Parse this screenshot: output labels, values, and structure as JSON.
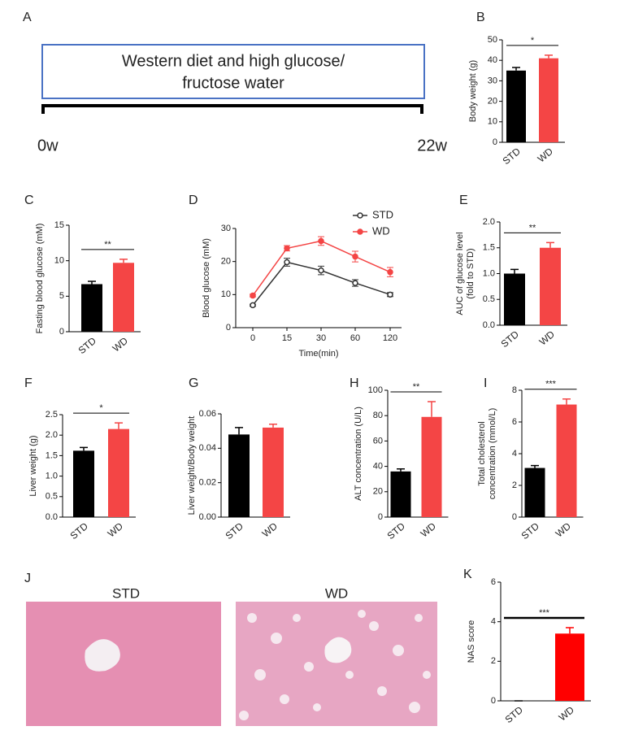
{
  "timeline": {
    "panel": "A",
    "lines": [
      "Western diet and high glucose/",
      "fructose water"
    ],
    "start": "0w",
    "end": "22w"
  },
  "histology": {
    "panel": "J",
    "titles": [
      "STD",
      "WD"
    ]
  },
  "chart_data": [
    {
      "type": "bar",
      "panel": "B",
      "ylabel": [
        "Body weight (g)"
      ],
      "categories": [
        "STD",
        "WD"
      ],
      "values": [
        35,
        41
      ],
      "errors": [
        1.5,
        1.5
      ],
      "colors": [
        "#000000",
        "#f44545"
      ],
      "ylim": [
        0,
        50
      ],
      "yticks": [
        0,
        10,
        20,
        30,
        40,
        50
      ],
      "significance": "*"
    },
    {
      "type": "bar",
      "panel": "C",
      "ylabel": [
        "Fasting blood glucose (mM)"
      ],
      "categories": [
        "STD",
        "WD"
      ],
      "values": [
        6.7,
        9.7
      ],
      "errors": [
        0.4,
        0.5
      ],
      "colors": [
        "#000000",
        "#f44545"
      ],
      "ylim": [
        0,
        15
      ],
      "yticks": [
        0,
        5,
        10,
        15
      ],
      "significance": "**"
    },
    {
      "type": "line",
      "panel": "D",
      "ylabel": [
        "Blood glucose (mM)"
      ],
      "xlabel": "Time(min)",
      "categories": [
        "0",
        "15",
        "30",
        "60",
        "120"
      ],
      "series": [
        {
          "name": "STD",
          "color": "#333333",
          "values": [
            6.8,
            19.8,
            17.3,
            13.5,
            10.0
          ],
          "errors": [
            0.3,
            1.2,
            1.3,
            1.0,
            0.6
          ]
        },
        {
          "name": "WD",
          "color": "#f44545",
          "values": [
            9.7,
            24,
            26.2,
            21.5,
            16.8
          ],
          "errors": [
            0.4,
            0.8,
            1.3,
            1.6,
            1.4
          ]
        }
      ],
      "ylim": [
        0,
        30
      ],
      "yticks": [
        0,
        10,
        20,
        30
      ],
      "legend": "upper right"
    },
    {
      "type": "bar",
      "panel": "E",
      "ylabel": [
        "AUC of glucose level",
        "(fold to STD)"
      ],
      "categories": [
        "STD",
        "WD"
      ],
      "values": [
        1.0,
        1.5
      ],
      "errors": [
        0.08,
        0.1
      ],
      "colors": [
        "#000000",
        "#f44545"
      ],
      "ylim": [
        0,
        2
      ],
      "yticks": [
        {
          "value": 0,
          "label": "0.0"
        },
        0.5,
        {
          "value": 1,
          "label": "1.0"
        },
        1.5,
        {
          "value": 2,
          "label": "2.0"
        }
      ],
      "significance": "**"
    },
    {
      "type": "bar",
      "panel": "F",
      "ylabel": [
        "Liver weight (g)"
      ],
      "categories": [
        "STD",
        "WD"
      ],
      "values": [
        1.62,
        2.15
      ],
      "errors": [
        0.08,
        0.15
      ],
      "colors": [
        "#000000",
        "#f44545"
      ],
      "ylim": [
        0,
        2.5
      ],
      "yticks": [
        {
          "value": 0,
          "label": "0.0"
        },
        0.5,
        {
          "value": 1,
          "label": "1.0"
        },
        1.5,
        {
          "value": 2,
          "label": "2.0"
        },
        2.5
      ],
      "significance": "*"
    },
    {
      "type": "bar",
      "panel": "G",
      "ylabel": [
        "Liver weight/Body weight"
      ],
      "categories": [
        "STD",
        "WD"
      ],
      "values": [
        0.048,
        0.052
      ],
      "errors": [
        0.004,
        0.002
      ],
      "colors": [
        "#000000",
        "#f44545"
      ],
      "ylim": [
        0,
        0.06
      ],
      "yticks": [
        {
          "value": 0,
          "label": "0.00"
        },
        {
          "value": 0.02,
          "label": "0.02"
        },
        {
          "value": 0.04,
          "label": "0.04"
        },
        {
          "value": 0.06,
          "label": "0.06"
        }
      ]
    },
    {
      "type": "bar",
      "panel": "H",
      "ylabel": [
        "ALT concentration (U/L)"
      ],
      "categories": [
        "STD",
        "WD"
      ],
      "values": [
        36,
        79
      ],
      "errors": [
        2,
        12
      ],
      "colors": [
        "#000000",
        "#f44545"
      ],
      "ylim": [
        0,
        100
      ],
      "yticks": [
        0,
        20,
        40,
        60,
        80,
        100
      ],
      "significance": "**"
    },
    {
      "type": "bar",
      "panel": "I",
      "ylabel": [
        "Total cholesterol",
        "concentration (mmol/L)"
      ],
      "categories": [
        "STD",
        "WD"
      ],
      "values": [
        3.1,
        7.1
      ],
      "errors": [
        0.15,
        0.35
      ],
      "colors": [
        "#000000",
        "#f44545"
      ],
      "ylim": [
        0,
        8
      ],
      "yticks": [
        0,
        2,
        4,
        6,
        8
      ],
      "significance": "***"
    },
    {
      "type": "bar",
      "panel": "K",
      "ylabel": [
        "NAS score"
      ],
      "categories": [
        "STD",
        "WD"
      ],
      "values": [
        0,
        3.4
      ],
      "errors": [
        0,
        0.3
      ],
      "colors": [
        "#000000",
        "#ff0000"
      ],
      "ylim": [
        0,
        6
      ],
      "yticks": [
        0,
        2,
        4,
        6
      ],
      "significance": "***"
    }
  ]
}
